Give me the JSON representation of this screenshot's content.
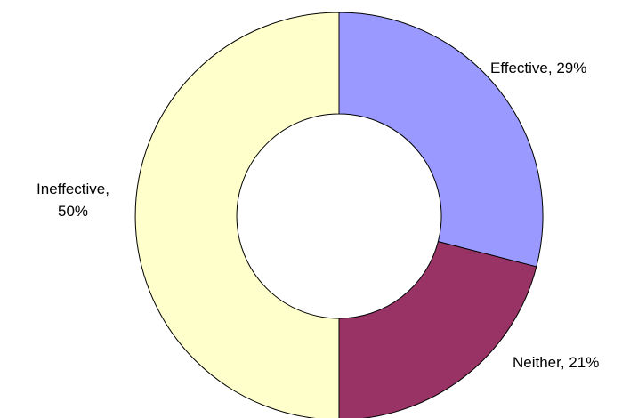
{
  "chart_data": {
    "type": "pie",
    "variant": "donut",
    "title": "",
    "legend": "none",
    "categories": [
      "Effective",
      "Neither",
      "Ineffective"
    ],
    "values": [
      29,
      21,
      50
    ],
    "unit": "%",
    "labels": [
      [
        "Effective, 29%"
      ],
      [
        "Neither, 21%"
      ],
      [
        "Ineffective,",
        "50%"
      ]
    ],
    "colors": [
      "#9999ff",
      "#993366",
      "#ffffcc"
    ],
    "start_angle": "12 o'clock",
    "direction": "clockwise"
  }
}
